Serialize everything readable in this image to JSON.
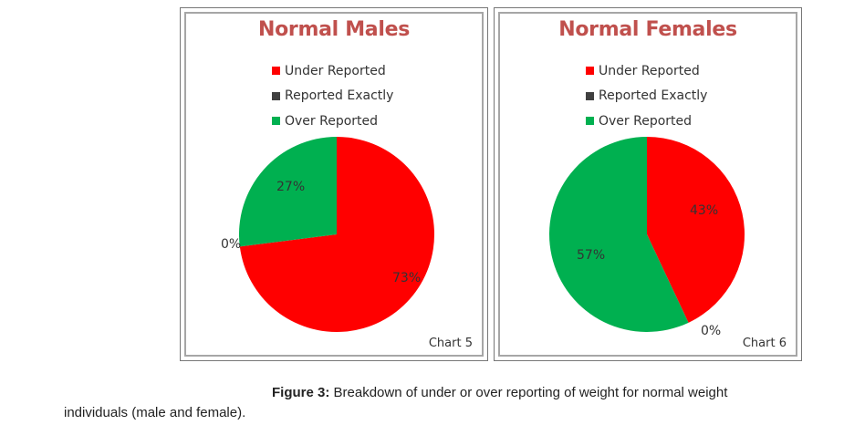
{
  "colors": {
    "under": "#ff0000",
    "exact": "#404040",
    "over": "#00b050",
    "title": "#c0504d"
  },
  "legend": [
    "Under Reported",
    "Reported Exactly",
    "Over Reported"
  ],
  "chart_data": [
    {
      "type": "pie",
      "title": "Normal Males",
      "chart_label": "Chart 5",
      "categories": [
        "Under Reported",
        "Reported Exactly",
        "Over Reported"
      ],
      "values": [
        73,
        0,
        27
      ],
      "labels": [
        "73%",
        "0%",
        "27%"
      ],
      "legend_position": "top"
    },
    {
      "type": "pie",
      "title": "Normal Females",
      "chart_label": "Chart 6",
      "categories": [
        "Under Reported",
        "Reported Exactly",
        "Over Reported"
      ],
      "values": [
        43,
        0,
        57
      ],
      "labels": [
        "43%",
        "0%",
        "57%"
      ],
      "legend_position": "top"
    }
  ],
  "caption": {
    "prefix": "Figure 3:",
    "line1": " Breakdown of under or over reporting of weight for normal weight",
    "line2": "individuals (male and female)."
  }
}
